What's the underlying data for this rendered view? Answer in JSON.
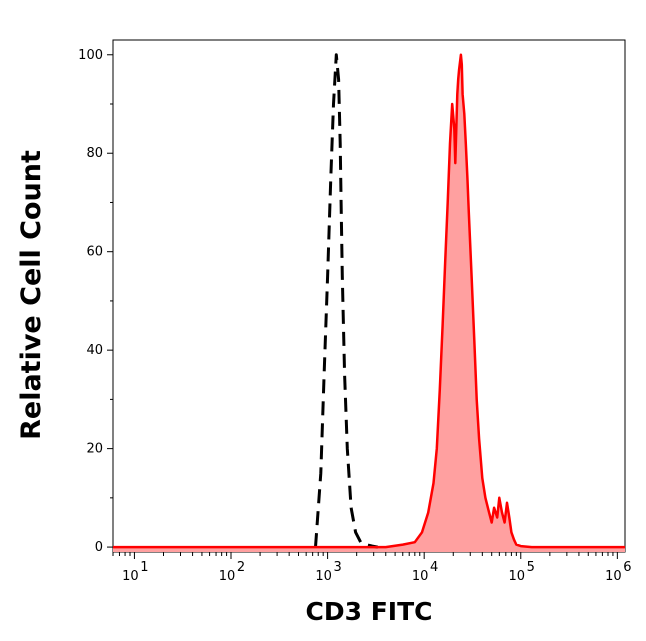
{
  "chart_data": {
    "type": "area",
    "title": "",
    "xlabel": "CD3 FITC",
    "ylabel": "Relative Cell Count",
    "x_scale": "log",
    "xlim": [
      6,
      1200000
    ],
    "ylim": [
      -1,
      103
    ],
    "x_ticks": [
      {
        "base": "10",
        "exp": "1",
        "value": 10
      },
      {
        "base": "10",
        "exp": "2",
        "value": 100
      },
      {
        "base": "10",
        "exp": "3",
        "value": 1000
      },
      {
        "base": "10",
        "exp": "4",
        "value": 10000
      },
      {
        "base": "10",
        "exp": "5",
        "value": 100000
      },
      {
        "base": "10",
        "exp": "6",
        "value": 1000000
      }
    ],
    "y_ticks": [
      {
        "label": "0",
        "value": 0
      },
      {
        "label": "20",
        "value": 20
      },
      {
        "label": "40",
        "value": 40
      },
      {
        "label": "60",
        "value": 60
      },
      {
        "label": "80",
        "value": 80
      },
      {
        "label": "100",
        "value": 100
      }
    ],
    "grid": false,
    "series": [
      {
        "style": "dashed",
        "color": "#000000",
        "fill": "none",
        "x": [
          750,
          850,
          920,
          1000,
          1080,
          1150,
          1230,
          1300,
          1350,
          1380,
          1420,
          1500,
          1600,
          1750,
          1950,
          2200,
          2500,
          2900,
          3300
        ],
        "y": [
          0,
          15,
          35,
          55,
          75,
          90,
          100,
          95,
          82,
          70,
          55,
          35,
          20,
          8,
          3,
          1,
          0.5,
          0.2,
          0
        ]
      },
      {
        "style": "solid",
        "color": "#ff0000",
        "fill": "#ffa0a0",
        "x": [
          6,
          100,
          1000,
          4000,
          6000,
          8000,
          9500,
          11000,
          12500,
          13500,
          14500,
          15500,
          16500,
          17500,
          18500,
          19500,
          20500,
          21000,
          22000,
          22500,
          23000,
          24000,
          24500,
          25000,
          26000,
          27000,
          28000,
          29000,
          31000,
          33000,
          35000,
          37000,
          40000,
          43000,
          47000,
          50000,
          53000,
          57000,
          60000,
          64000,
          68000,
          72000,
          76000,
          80000,
          85000,
          90000,
          100000,
          130000,
          200000,
          500000,
          1200000
        ],
        "y": [
          0,
          0,
          0,
          0,
          0.5,
          1,
          3,
          7,
          13,
          20,
          32,
          45,
          58,
          70,
          82,
          90,
          85,
          78,
          92,
          95,
          97,
          100,
          98,
          92,
          88,
          82,
          75,
          68,
          55,
          42,
          30,
          22,
          14,
          10,
          7,
          5,
          8,
          6,
          10,
          7,
          5,
          9,
          6,
          3,
          1.5,
          0.5,
          0.2,
          0,
          0,
          0,
          0
        ]
      }
    ]
  }
}
